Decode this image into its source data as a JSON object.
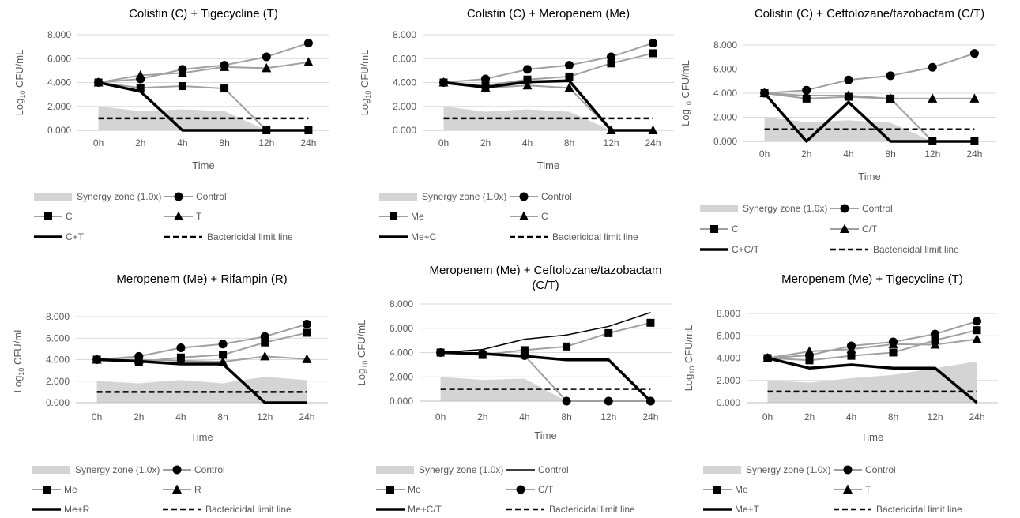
{
  "chart_data": [
    {
      "type": "line",
      "title": "Colistin (C) + Tigecycline (T)",
      "xlabel": "Time",
      "ylabel": "Log10 CFU/mL",
      "ylabel_parts": [
        "Log",
        "10",
        " CFU/mL"
      ],
      "categories": [
        "0h",
        "2h",
        "4h",
        "8h",
        "12h",
        "24h"
      ],
      "ylim": [
        0,
        8
      ],
      "yticks": [
        "0.000",
        "2.000",
        "4.000",
        "6.000",
        "8.000"
      ],
      "synergy_zone": {
        "name": "Synergy zone (1.0x)",
        "values": [
          2.0,
          1.6,
          1.75,
          1.6,
          0.0,
          0.0
        ]
      },
      "series": [
        {
          "name": "Control",
          "values": [
            4.0,
            4.3,
            5.1,
            5.45,
            6.15,
            7.3
          ],
          "color": "#a0a0a0",
          "marker": "circle",
          "width": 2
        },
        {
          "name": "C",
          "values": [
            4.0,
            3.55,
            3.7,
            3.5,
            0.0,
            0.0
          ],
          "color": "#a0a0a0",
          "marker": "square",
          "width": 2
        },
        {
          "name": "T",
          "values": [
            4.0,
            4.6,
            4.8,
            5.3,
            5.2,
            5.7
          ],
          "color": "#a0a0a0",
          "marker": "triangle",
          "width": 2
        },
        {
          "name": "C+T",
          "values": [
            4.0,
            3.25,
            0.0,
            0.0,
            0.0,
            0.0
          ],
          "color": "#000000",
          "marker": "none",
          "width": 3.5
        }
      ],
      "limit_line": {
        "name": "Bactericidal limit line",
        "value": 1.0
      },
      "legend_order": [
        "zone",
        0,
        1,
        2,
        3,
        "limit"
      ]
    },
    {
      "type": "line",
      "title": "Colistin (C) + Meropenem (Me)",
      "xlabel": "Time",
      "ylabel": "Log10 CFU/mL",
      "ylabel_parts": [
        "Log",
        "10",
        " CFU/mL"
      ],
      "categories": [
        "0h",
        "2h",
        "4h",
        "8h",
        "12h",
        "24h"
      ],
      "ylim": [
        0,
        8
      ],
      "yticks": [
        "0.000",
        "2.000",
        "4.000",
        "6.000",
        "8.000"
      ],
      "synergy_zone": {
        "name": "Synergy zone (1.0x)",
        "values": [
          2.0,
          1.55,
          1.75,
          1.55,
          0.0,
          0.0
        ]
      },
      "series": [
        {
          "name": "Control",
          "values": [
            4.0,
            4.3,
            5.1,
            5.45,
            6.15,
            7.3
          ],
          "color": "#a0a0a0",
          "marker": "circle",
          "width": 2
        },
        {
          "name": "Me",
          "values": [
            4.0,
            3.75,
            4.25,
            4.5,
            5.6,
            6.45
          ],
          "color": "#a0a0a0",
          "marker": "square",
          "width": 2
        },
        {
          "name": "C",
          "values": [
            4.0,
            3.55,
            3.75,
            3.55,
            0.0,
            0.0
          ],
          "color": "#a0a0a0",
          "marker": "triangle",
          "width": 2
        },
        {
          "name": "Me+C",
          "values": [
            4.0,
            3.6,
            4.05,
            4.15,
            0.0,
            0.0
          ],
          "color": "#000000",
          "marker": "none",
          "width": 3.5
        }
      ],
      "limit_line": {
        "name": "Bactericidal limit line",
        "value": 1.0
      },
      "legend_order": [
        "zone",
        0,
        1,
        2,
        3,
        "limit"
      ]
    },
    {
      "type": "line",
      "title": "Colistin (C) + Ceftolozane/tazobactam (C/T)",
      "xlabel": "Time",
      "ylabel": "Log10 CFU/mL",
      "ylabel_parts": [
        "Log",
        "10",
        " CFU/mL"
      ],
      "categories": [
        "0h",
        "2h",
        "4h",
        "8h",
        "12h",
        "24h"
      ],
      "ylim": [
        0,
        8
      ],
      "yticks": [
        "0.000",
        "2.000",
        "4.000",
        "6.000",
        "8.000"
      ],
      "synergy_zone": {
        "name": "Synergy zone (1.0x)",
        "values": [
          2.0,
          1.6,
          1.75,
          1.55,
          0.0,
          0.0
        ]
      },
      "series": [
        {
          "name": "Control",
          "values": [
            4.0,
            4.25,
            5.1,
            5.45,
            6.15,
            7.3
          ],
          "color": "#a0a0a0",
          "marker": "circle",
          "width": 2
        },
        {
          "name": "C",
          "values": [
            4.0,
            3.55,
            3.7,
            3.55,
            0.0,
            0.0
          ],
          "color": "#a0a0a0",
          "marker": "square",
          "width": 2
        },
        {
          "name": "C/T",
          "values": [
            4.0,
            3.8,
            3.8,
            3.55,
            3.55,
            3.55
          ],
          "color": "#a0a0a0",
          "marker": "triangle",
          "width": 2
        },
        {
          "name": "C+C/T",
          "values": [
            4.0,
            0.0,
            3.25,
            0.0,
            0.0,
            0.0
          ],
          "color": "#000000",
          "marker": "none",
          "width": 3.5
        }
      ],
      "limit_line": {
        "name": "Bactericidal limit line",
        "value": 1.0
      },
      "legend_order": [
        "zone",
        0,
        1,
        2,
        3,
        "limit"
      ]
    },
    {
      "type": "line",
      "title": "Meropenem (Me) + Rifampin (R)",
      "xlabel": "Time",
      "ylabel": "Log10 CFU/mL",
      "ylabel_parts": [
        "Log",
        "10",
        " CFU/mL"
      ],
      "categories": [
        "0h",
        "2h",
        "4h",
        "8h",
        "12h",
        "24h"
      ],
      "ylim": [
        0,
        8
      ],
      "yticks": [
        "0.000",
        "2.000",
        "4.000",
        "6.000",
        "8.000"
      ],
      "synergy_zone": {
        "name": "Synergy zone (1.0x)",
        "values": [
          2.0,
          1.8,
          2.1,
          1.8,
          2.4,
          2.1
        ]
      },
      "series": [
        {
          "name": "Control",
          "values": [
            4.0,
            4.3,
            5.1,
            5.45,
            6.15,
            7.3
          ],
          "color": "#a0a0a0",
          "marker": "circle",
          "width": 2
        },
        {
          "name": "Me",
          "values": [
            4.0,
            3.8,
            4.2,
            4.45,
            5.6,
            6.5
          ],
          "color": "#a0a0a0",
          "marker": "square",
          "width": 2
        },
        {
          "name": "R",
          "values": [
            4.0,
            4.0,
            3.9,
            3.8,
            4.3,
            4.05
          ],
          "color": "#a0a0a0",
          "marker": "triangle",
          "width": 2
        },
        {
          "name": "Me+R",
          "values": [
            4.0,
            3.85,
            3.6,
            3.6,
            0.0,
            0.0
          ],
          "color": "#000000",
          "marker": "none",
          "width": 3.5
        }
      ],
      "limit_line": {
        "name": "Bactericidal limit line",
        "value": 1.0
      },
      "legend_order": [
        "zone",
        0,
        1,
        2,
        3,
        "limit"
      ]
    },
    {
      "type": "line",
      "title": "Meropenem (Me) + Ceftolozane/tazobactam (C/T)",
      "xlabel": "Time",
      "ylabel": "Log10 CFU/mL",
      "ylabel_parts": [
        "Log",
        "10",
        " CFU/mL"
      ],
      "categories": [
        "0h",
        "2h",
        "4h",
        "8h",
        "12h",
        "24h"
      ],
      "ylim": [
        0,
        8
      ],
      "yticks": [
        "0.000",
        "2.000",
        "4.000",
        "6.000",
        "8.000"
      ],
      "synergy_zone": {
        "name": "Synergy zone (1.0x)",
        "values": [
          2.0,
          1.75,
          1.85,
          0.0,
          0.0,
          0.0
        ]
      },
      "series": [
        {
          "name": "Control",
          "values": [
            4.0,
            4.25,
            5.1,
            5.45,
            6.15,
            7.3
          ],
          "color": "#000000",
          "marker": "none",
          "width": 1.5
        },
        {
          "name": "Me",
          "values": [
            4.0,
            3.8,
            4.2,
            4.5,
            5.6,
            6.45
          ],
          "color": "#a0a0a0",
          "marker": "square",
          "width": 2
        },
        {
          "name": "C/T",
          "values": [
            4.0,
            3.9,
            3.75,
            0.0,
            0.0,
            0.0
          ],
          "color": "#a0a0a0",
          "marker": "circle",
          "width": 2
        },
        {
          "name": "Me+C/T",
          "values": [
            4.0,
            3.9,
            3.7,
            3.4,
            3.4,
            0.0
          ],
          "color": "#000000",
          "marker": "none",
          "width": 3.5
        }
      ],
      "limit_line": {
        "name": "Bactericidal limit line",
        "value": 1.0
      },
      "legend_order": [
        "zone",
        0,
        1,
        2,
        3,
        "limit"
      ]
    },
    {
      "type": "line",
      "title": "Meropenem (Me) + Tigecycline (T)",
      "xlabel": "Time",
      "ylabel": "Log10 CFU/mL",
      "ylabel_parts": [
        "Log",
        "10",
        " CFU/mL"
      ],
      "categories": [
        "0h",
        "2h",
        "4h",
        "8h",
        "12h",
        "24h"
      ],
      "ylim": [
        0,
        8
      ],
      "yticks": [
        "0.000",
        "2.000",
        "4.000",
        "6.000",
        "8.000"
      ],
      "synergy_zone": {
        "name": "Synergy zone (1.0x)",
        "values": [
          2.0,
          1.8,
          2.2,
          2.5,
          3.1,
          3.7
        ]
      },
      "series": [
        {
          "name": "Control",
          "values": [
            4.0,
            4.25,
            5.1,
            5.45,
            6.15,
            7.3
          ],
          "color": "#a0a0a0",
          "marker": "circle",
          "width": 2
        },
        {
          "name": "Me",
          "values": [
            4.0,
            3.8,
            4.2,
            4.5,
            5.6,
            6.5
          ],
          "color": "#a0a0a0",
          "marker": "square",
          "width": 2
        },
        {
          "name": "T",
          "values": [
            4.0,
            4.6,
            4.8,
            5.25,
            5.2,
            5.7
          ],
          "color": "#a0a0a0",
          "marker": "triangle",
          "width": 2
        },
        {
          "name": "Me+T",
          "values": [
            4.0,
            3.1,
            3.4,
            3.1,
            3.1,
            0.0
          ],
          "color": "#000000",
          "marker": "none",
          "width": 3.5
        }
      ],
      "limit_line": {
        "name": "Bactericidal limit line",
        "value": 1.0
      },
      "legend_order": [
        "zone",
        0,
        1,
        2,
        3,
        "limit"
      ]
    }
  ]
}
